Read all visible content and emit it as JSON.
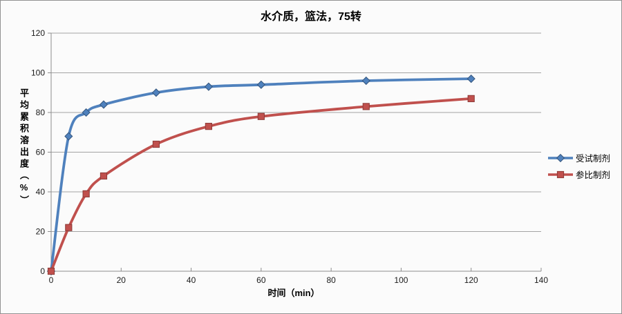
{
  "window": {
    "background": "#FBFBFB",
    "border_color": "#919191"
  },
  "chart_data": {
    "type": "line",
    "title": "水介质，篮法，75转",
    "xlabel": "时间（min）",
    "ylabel": "平均累积溶出度（%）",
    "x": [
      0,
      5,
      10,
      15,
      30,
      45,
      60,
      90,
      120
    ],
    "series": [
      {
        "name": "受试制剂",
        "color": "#4F81BD",
        "edge": "#35567D",
        "marker": "diamond",
        "values": [
          0,
          68,
          80,
          84,
          90,
          93,
          94,
          96,
          97
        ]
      },
      {
        "name": "参比制剂",
        "color": "#C0504D",
        "edge": "#8C3A37",
        "marker": "square",
        "values": [
          0,
          22,
          39,
          48,
          64,
          73,
          78,
          83,
          87
        ]
      }
    ],
    "xlim": [
      0,
      140
    ],
    "ylim": [
      0,
      120
    ],
    "xticks": [
      0,
      20,
      40,
      60,
      80,
      100,
      120,
      140
    ],
    "yticks": [
      0,
      20,
      40,
      60,
      80,
      100,
      120
    ],
    "grid": "horizontal-only",
    "smoothed_lines": true,
    "legend_position": "right",
    "gridline_color": "#A3A3A3",
    "axis_color": "#8C8C8C",
    "tick_label_color": "#1a1a1a"
  }
}
